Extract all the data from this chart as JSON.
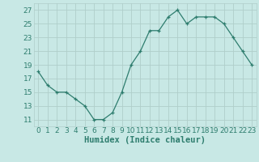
{
  "x": [
    0,
    1,
    2,
    3,
    4,
    5,
    6,
    7,
    8,
    9,
    10,
    11,
    12,
    13,
    14,
    15,
    16,
    17,
    18,
    19,
    20,
    21,
    22,
    23
  ],
  "y": [
    18,
    16,
    15,
    15,
    14,
    13,
    11,
    11,
    12,
    15,
    19,
    21,
    24,
    24,
    26,
    27,
    25,
    26,
    26,
    26,
    25,
    23,
    21,
    19
  ],
  "line_color": "#2e7d6e",
  "marker": "+",
  "bg_color": "#c8e8e5",
  "grid_color": "#b0ceca",
  "xlabel": "Humidex (Indice chaleur)",
  "yticks": [
    11,
    13,
    15,
    17,
    19,
    21,
    23,
    25,
    27
  ],
  "ymin": 10,
  "ymax": 28,
  "xmin": -0.5,
  "xmax": 23.5,
  "tick_color": "#2e7d6e",
  "tick_labelsize": 6.5,
  "xlabel_fontsize": 7.5,
  "lw": 0.9,
  "markersize": 3.5,
  "markeredgewidth": 0.9
}
